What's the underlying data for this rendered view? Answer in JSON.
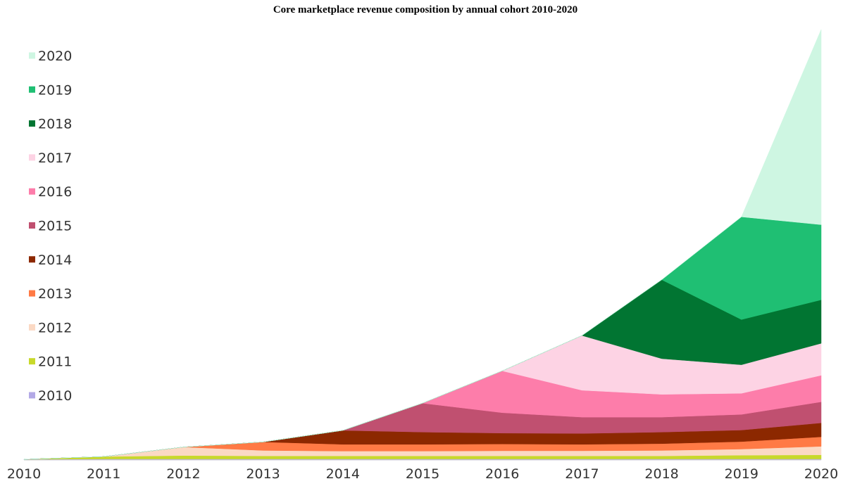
{
  "chart_data": {
    "type": "area",
    "stacked": true,
    "title": "Core marketplace revenue composition by annual cohort 2010-2020",
    "xlabel": "",
    "ylabel": "",
    "x": [
      "2010",
      "2011",
      "2012",
      "2013",
      "2014",
      "2015",
      "2016",
      "2017",
      "2018",
      "2019",
      "2020"
    ],
    "ylim": [
      0,
      127
    ],
    "grid": false,
    "legend_position": "left",
    "series": [
      {
        "name": "2010",
        "color": "#b3a9e6",
        "values": [
          0.2,
          0.3,
          0.3,
          0.3,
          0.3,
          0.3,
          0.3,
          0.3,
          0.3,
          0.3,
          0.3
        ]
      },
      {
        "name": "2011",
        "color": "#c8d92b",
        "values": [
          0,
          0.7,
          1.0,
          0.9,
          0.9,
          0.9,
          0.9,
          0.9,
          0.9,
          1.1,
          1.2
        ]
      },
      {
        "name": "2012",
        "color": "#fbd9c4",
        "values": [
          0,
          0,
          2.5,
          1.6,
          1.4,
          1.4,
          1.5,
          1.5,
          1.6,
          1.8,
          2.5
        ]
      },
      {
        "name": "2013",
        "color": "#ff7a45",
        "values": [
          0,
          0,
          0,
          2.5,
          2.0,
          2.0,
          2.0,
          1.9,
          2.0,
          2.2,
          2.8
        ]
      },
      {
        "name": "2014",
        "color": "#8c2800",
        "values": [
          0,
          0,
          0,
          0,
          4.1,
          3.6,
          3.2,
          3.2,
          3.4,
          3.4,
          4.1
        ]
      },
      {
        "name": "2015",
        "color": "#c05070",
        "values": [
          0,
          0,
          0,
          0,
          0,
          8.5,
          6.0,
          4.8,
          4.4,
          4.6,
          6.2
        ]
      },
      {
        "name": "2016",
        "color": "#fd7daa",
        "values": [
          0,
          0,
          0,
          0,
          0,
          0,
          12.3,
          7.9,
          6.7,
          6.2,
          7.8
        ]
      },
      {
        "name": "2017",
        "color": "#fdd3e4",
        "values": [
          0,
          0,
          0,
          0,
          0,
          0,
          0,
          16.1,
          10.5,
          8.4,
          9.4
        ]
      },
      {
        "name": "2018",
        "color": "#017532",
        "values": [
          0,
          0,
          0,
          0,
          0,
          0,
          0,
          0,
          23.2,
          13.3,
          12.8
        ]
      },
      {
        "name": "2019",
        "color": "#1fbf73",
        "values": [
          0,
          0,
          0,
          0,
          0,
          0,
          0,
          0,
          0,
          30.2,
          22.1
        ]
      },
      {
        "name": "2020",
        "color": "#cef6e2",
        "values": [
          0,
          0,
          0,
          0,
          0,
          0,
          0,
          0,
          0,
          0,
          57.4
        ]
      }
    ]
  }
}
